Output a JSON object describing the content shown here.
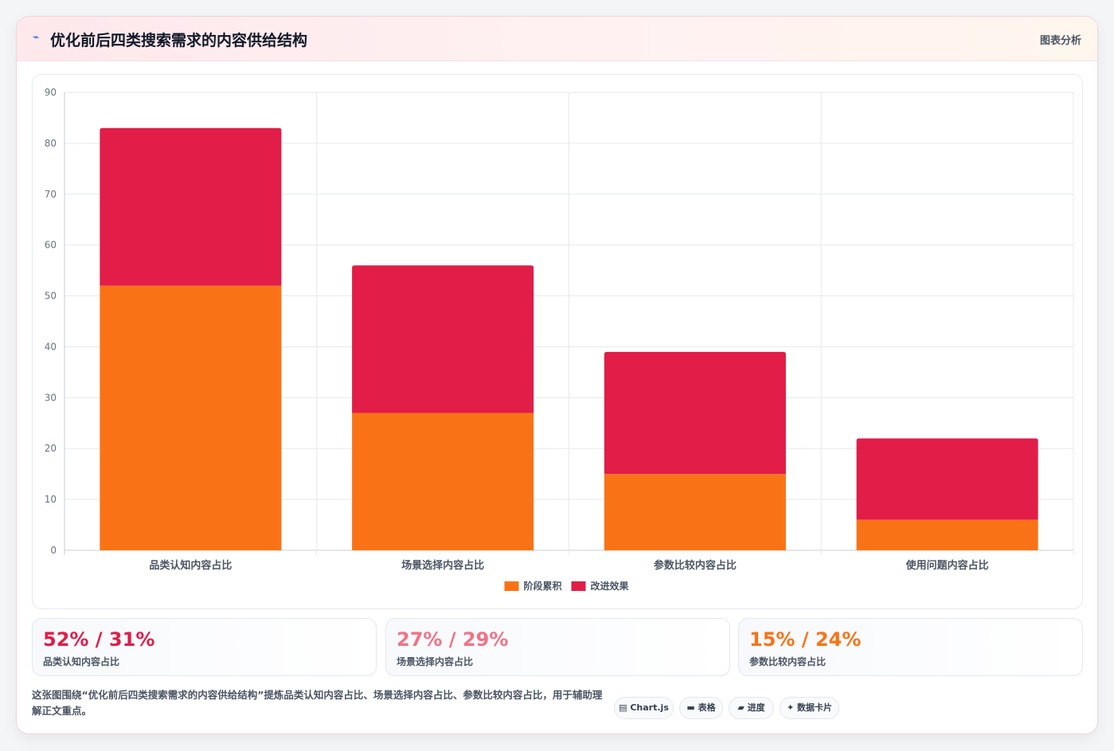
{
  "header": {
    "icon": "chart-line-icon",
    "icon_glyph": "⌁",
    "title": "优化前后四类搜索需求的内容供给结构",
    "action_label": "图表分析"
  },
  "chart_data": {
    "type": "bar",
    "stacked": true,
    "categories": [
      "品类认知内容占比",
      "场景选择内容占比",
      "参数比较内容占比",
      "使用问题内容占比"
    ],
    "series": [
      {
        "name": "阶段累积",
        "color": "#f97316",
        "values": [
          52,
          27,
          15,
          6
        ]
      },
      {
        "name": "改进效果",
        "color": "#e11d48",
        "values": [
          31,
          29,
          24,
          16
        ]
      }
    ],
    "ylim": [
      0,
      90
    ],
    "yticks": [
      0,
      10,
      20,
      30,
      40,
      50,
      60,
      70,
      80,
      90
    ],
    "grid": true,
    "legend": "bottom-center"
  },
  "stats": [
    {
      "value": "52% / 31%",
      "label": "品类认知内容占比",
      "color": "#e11d48"
    },
    {
      "value": "27% / 29%",
      "label": "场景选择内容占比",
      "color": "#f17384"
    },
    {
      "value": "15% / 24%",
      "label": "参数比较内容占比",
      "color": "#f97316"
    }
  ],
  "footer": {
    "note": "这张图围绕“优化前后四类搜索需求的内容供给结构”提炼品类认知内容占比、场景选择内容占比、参数比较内容占比，用于辅助理解正文重点。",
    "tags": [
      {
        "icon": "chart-icon",
        "glyph": "▤",
        "label": "Chart.js"
      },
      {
        "icon": "table-icon",
        "glyph": "▬",
        "label": "表格"
      },
      {
        "icon": "progress-icon",
        "glyph": "▰",
        "label": "进度"
      },
      {
        "icon": "card-icon",
        "glyph": "✦",
        "label": "数据卡片"
      }
    ]
  }
}
